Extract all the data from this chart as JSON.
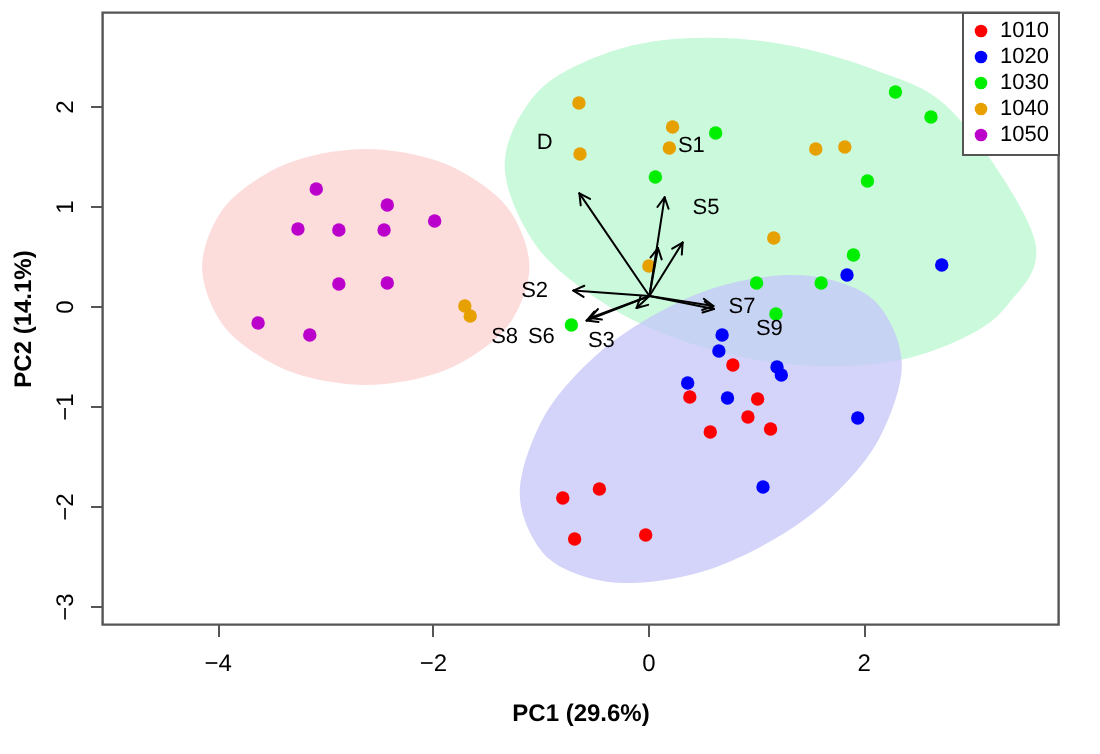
{
  "chart_data": {
    "type": "scatter",
    "xlabel": "PC1 (29.6%)",
    "ylabel": "PC2 (14.1%)",
    "xlim": [
      -5.07,
      3.81
    ],
    "ylim": [
      -3.18,
      2.94
    ],
    "xticks": [
      -4,
      -2,
      0,
      2
    ],
    "yticks": [
      -3,
      -2,
      -1,
      0,
      1,
      2
    ],
    "grid": false,
    "legend": "top right",
    "marker": "circle",
    "series": [
      {
        "type": "area",
        "marker": "none",
        "color": "#fcd0d0",
        "x": [
          -4.14,
          -3.99,
          -3.68,
          -3.23,
          -2.62,
          -2.01,
          -1.56,
          -1.25,
          -1.1,
          -1.25,
          -1.56,
          -2.01,
          -2.62,
          -3.23,
          -3.68,
          -3.99
        ],
        "values": [
          0.39,
          0.9,
          1.23,
          1.47,
          1.57,
          1.47,
          1.23,
          0.9,
          0.39,
          -0.12,
          -0.45,
          -0.69,
          -0.79,
          -0.69,
          -0.45,
          -0.12
        ]
      },
      {
        "type": "area",
        "marker": "none",
        "color": "#b8f7cf",
        "x": [
          -1.33,
          -1.08,
          -0.59,
          0.15,
          1.13,
          2.11,
          2.85,
          3.59,
          3.34,
          2.85,
          2.11,
          1.13,
          0.15,
          -0.59,
          -1.08
        ],
        "values": [
          1.41,
          2.07,
          2.44,
          2.66,
          2.64,
          2.36,
          1.92,
          0.67,
          0.01,
          -0.36,
          -0.58,
          -0.56,
          -0.28,
          0.16,
          0.67
        ]
      },
      {
        "type": "area",
        "marker": "none",
        "color": "#c6c6f9",
        "x": [
          -1.19,
          -1.01,
          -0.66,
          -0.13,
          0.585,
          1.3,
          1.83,
          2.18,
          2.36,
          2.18,
          1.83,
          1.3,
          0.585,
          -0.13,
          -0.66,
          -1.01
        ],
        "values": [
          -1.87,
          -1.2,
          -0.68,
          -0.21,
          0.17,
          0.31,
          0.22,
          -0.04,
          -0.59,
          -1.26,
          -1.78,
          -2.25,
          -2.63,
          -2.77,
          -2.68,
          -2.42
        ]
      },
      {
        "name": "1010",
        "color": "#ff0000",
        "x": [
          0.79,
          0.39,
          1.02,
          0.93,
          0.58,
          1.14,
          -0.79,
          -0.45,
          -0.68,
          -0.02
        ],
        "values": [
          -0.59,
          -0.91,
          -0.93,
          -1.11,
          -1.26,
          -1.23,
          -1.92,
          -1.83,
          -2.33,
          -2.29
        ]
      },
      {
        "name": "1020",
        "color": "#0000ff",
        "x": [
          1.85,
          2.73,
          0.69,
          0.66,
          1.2,
          1.24,
          0.37,
          0.74,
          1.95,
          1.07
        ],
        "values": [
          0.31,
          0.41,
          -0.29,
          -0.45,
          -0.61,
          -0.69,
          -0.77,
          -0.92,
          -1.12,
          -1.81
        ]
      },
      {
        "name": "1030",
        "color": "#00ee00",
        "x": [
          0.63,
          0.07,
          2.3,
          2.63,
          2.04,
          1.91,
          1.01,
          1.61,
          1.19,
          -0.71
        ],
        "values": [
          1.73,
          1.29,
          2.14,
          1.89,
          1.25,
          0.51,
          0.23,
          0.23,
          -0.08,
          -0.19
        ]
      },
      {
        "name": "1040",
        "color": "#e6a000",
        "x": [
          -0.64,
          -0.63,
          0.23,
          0.2,
          1.56,
          1.83,
          1.17,
          0.01,
          -1.7,
          -1.65
        ],
        "values": [
          2.03,
          1.52,
          1.79,
          1.58,
          1.57,
          1.59,
          0.68,
          0.4,
          0.0,
          -0.1
        ]
      },
      {
        "name": "1050",
        "color": "#bb00cc",
        "x": [
          -3.08,
          -2.42,
          -3.25,
          -2.87,
          -2.45,
          -1.98,
          -2.87,
          -2.42,
          -3.62,
          -3.14
        ],
        "values": [
          1.17,
          1.01,
          0.77,
          0.76,
          0.76,
          0.85,
          0.22,
          0.23,
          -0.17,
          -0.29
        ]
      }
    ],
    "annotations": [
      "D",
      "S1",
      "S5",
      "S2",
      "S7",
      "S9",
      "S3",
      "S8",
      "S6"
    ]
  }
}
